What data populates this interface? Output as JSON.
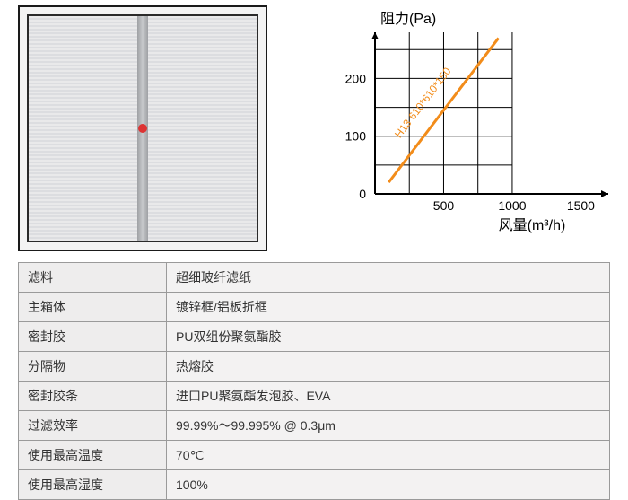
{
  "chart": {
    "type": "line",
    "ylabel": "阻力(Pa)",
    "xlabel": "风量(m³/h)",
    "yticks": [
      0,
      100,
      200
    ],
    "xticks": [
      500,
      1000,
      1500
    ],
    "xlim": [
      0,
      1700
    ],
    "ylim": [
      0,
      280
    ],
    "axis_color": "#000000",
    "grid_color": "#000000",
    "line_color": "#f28c1a",
    "line_width": 3,
    "label_fontsize": 16,
    "tick_fontsize": 14,
    "series_label": "H13  610*610*150",
    "series_label_color": "#f28c1a",
    "points": [
      {
        "x": 100,
        "y": 20
      },
      {
        "x": 900,
        "y": 270
      }
    ],
    "background_color": "#ffffff"
  },
  "table": {
    "rows": [
      {
        "label": "滤料",
        "value": "超细玻纤滤纸"
      },
      {
        "label": "主箱体",
        "value": "镀锌框/铝板折框"
      },
      {
        "label": "密封胶",
        "value": "PU双组份聚氨酯胶"
      },
      {
        "label": "分隔物",
        "value": "热熔胶"
      },
      {
        "label": "密封胶条",
        "value": "进口PU聚氨酯发泡胶、EVA"
      },
      {
        "label": "过滤效率",
        "value": "99.99%～99.995% @ 0.3μm"
      },
      {
        "label": "使用最高温度",
        "value": "70℃"
      },
      {
        "label": "使用最高湿度",
        "value": "100%"
      }
    ]
  }
}
